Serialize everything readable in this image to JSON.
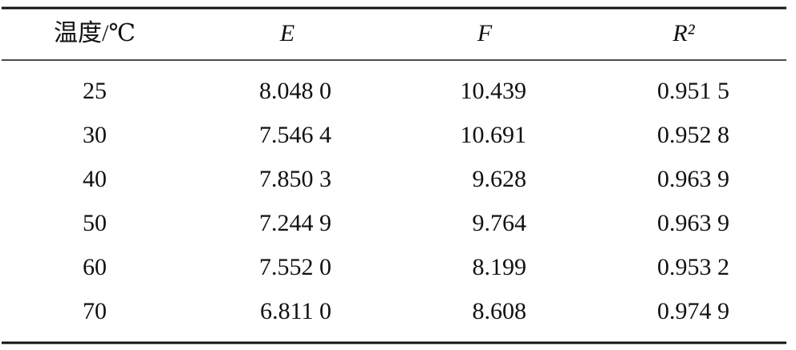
{
  "table": {
    "header": [
      "温度/℃",
      "E",
      "F",
      "R²"
    ],
    "rows": [
      [
        "25",
        "8.048 0",
        "10.439",
        "0.951 5"
      ],
      [
        "30",
        "7.546 4",
        "10.691",
        "0.952 8"
      ],
      [
        "40",
        "7.850 3",
        "9.628",
        "0.963 9"
      ],
      [
        "50",
        "7.244 9",
        "9.764",
        "0.963 9"
      ],
      [
        "60",
        "7.552 0",
        "8.199",
        "0.953 2"
      ],
      [
        "70",
        "6.811 0",
        "8.608",
        "0.974 9"
      ]
    ]
  }
}
